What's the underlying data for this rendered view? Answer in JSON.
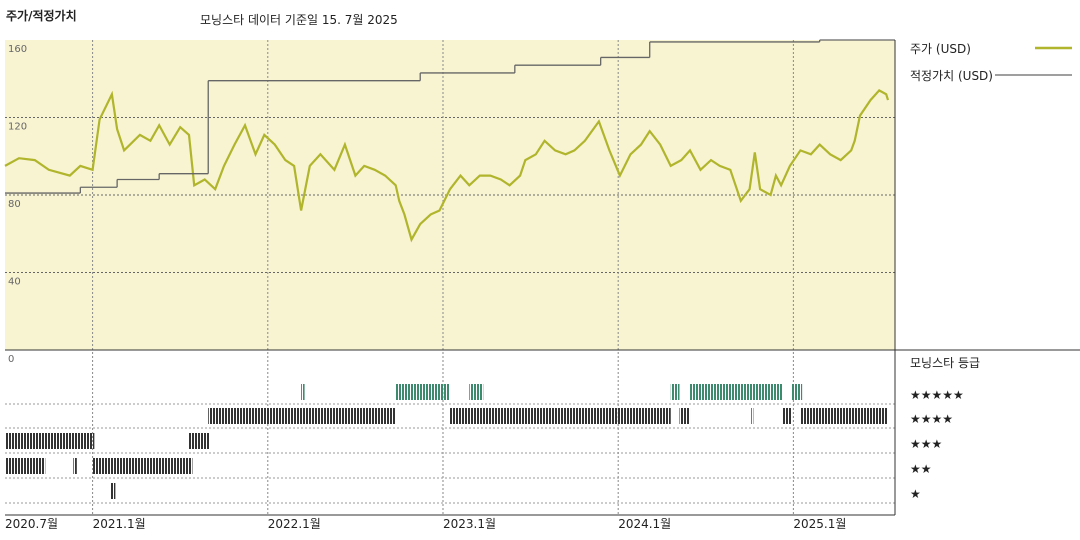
{
  "chart_data": {
    "type": "line",
    "title": "주가/적정가치",
    "subtitle": "모닝스타 데이터 기준일 15. 7월 2025",
    "xlim": [
      2020.5,
      2025.58
    ],
    "xticks": [
      {
        "value": 2020.5,
        "label": "2020.7월"
      },
      {
        "value": 2021.0,
        "label": "2021.1월"
      },
      {
        "value": 2022.0,
        "label": "2022.1월"
      },
      {
        "value": 2023.0,
        "label": "2023.1월"
      },
      {
        "value": 2024.0,
        "label": "2024.1월"
      },
      {
        "value": 2025.0,
        "label": "2025.1월"
      }
    ],
    "ylim": [
      0,
      160
    ],
    "yticks": [
      0,
      40,
      80,
      120,
      160
    ],
    "grid": true,
    "series": [
      {
        "name": "주가 (USD)",
        "color": "#b0b52c",
        "x": [
          2020.5,
          2020.58,
          2020.67,
          2020.75,
          2020.87,
          2020.93,
          2021.0,
          2021.04,
          2021.11,
          2021.14,
          2021.18,
          2021.27,
          2021.33,
          2021.38,
          2021.44,
          2021.5,
          2021.55,
          2021.58,
          2021.64,
          2021.7,
          2021.75,
          2021.81,
          2021.87,
          2021.93,
          2021.98,
          2022.04,
          2022.1,
          2022.15,
          2022.19,
          2022.24,
          2022.3,
          2022.38,
          2022.44,
          2022.5,
          2022.55,
          2022.61,
          2022.67,
          2022.73,
          2022.75,
          2022.78,
          2022.82,
          2022.87,
          2022.93,
          2022.98,
          2023.04,
          2023.1,
          2023.15,
          2023.21,
          2023.27,
          2023.33,
          2023.38,
          2023.44,
          2023.47,
          2023.53,
          2023.58,
          2023.64,
          2023.7,
          2023.75,
          2023.81,
          2023.89,
          2023.95,
          2024.01,
          2024.07,
          2024.13,
          2024.18,
          2024.24,
          2024.3,
          2024.36,
          2024.41,
          2024.47,
          2024.53,
          2024.58,
          2024.64,
          2024.7,
          2024.75,
          2024.78,
          2024.81,
          2024.87,
          2024.9,
          2024.93,
          2024.98,
          2025.04,
          2025.1,
          2025.15,
          2025.21,
          2025.27,
          2025.33,
          2025.35,
          2025.38,
          2025.44,
          2025.49,
          2025.53,
          2025.54
        ],
        "values": [
          95,
          99,
          98,
          93,
          90,
          95,
          93,
          119,
          132,
          114,
          103,
          111,
          108,
          116,
          106,
          115,
          111,
          85,
          88,
          83,
          95,
          106,
          116,
          101,
          111,
          106,
          98,
          95,
          72,
          95,
          101,
          93,
          106,
          90,
          95,
          93,
          90,
          85,
          77,
          70,
          57,
          65,
          70,
          72,
          83,
          90,
          85,
          90,
          90,
          88,
          85,
          90,
          98,
          101,
          108,
          103,
          101,
          103,
          108,
          118,
          103,
          90,
          101,
          106,
          113,
          106,
          95,
          98,
          103,
          93,
          98,
          95,
          93,
          77,
          83,
          102,
          83,
          80,
          90,
          85,
          95,
          103,
          101,
          106,
          101,
          98,
          103,
          108,
          121,
          129,
          134,
          132,
          129
        ]
      },
      {
        "name": "적정가치 (USD)",
        "color": "#666666",
        "x": [
          2020.5,
          2020.93,
          2021.14,
          2021.38,
          2021.66,
          2022.87,
          2023.41,
          2023.9,
          2024.18,
          2025.15,
          2025.58
        ],
        "values": [
          81,
          84,
          88,
          91,
          139,
          143,
          147,
          151,
          159,
          160,
          160
        ]
      }
    ],
    "ratings": {
      "title": "모닝스타 등급",
      "rows": [
        {
          "label": "★★★★★",
          "color": "#3e8a6f",
          "segments": [
            [
              2022.19,
              2022.21
            ],
            [
              2022.73,
              2023.04
            ],
            [
              2023.15,
              2023.23
            ],
            [
              2024.3,
              2024.35
            ],
            [
              2024.41,
              2024.94
            ],
            [
              2024.99,
              2025.05
            ]
          ]
        },
        {
          "label": "★★★★",
          "color": "#333333",
          "segments": [
            [
              2021.66,
              2022.73
            ],
            [
              2023.04,
              2024.3
            ],
            [
              2024.35,
              2024.41
            ],
            [
              2024.76,
              2024.77
            ],
            [
              2024.94,
              2024.99
            ],
            [
              2025.04,
              2025.54
            ]
          ]
        },
        {
          "label": "★★★",
          "color": "#333333",
          "segments": [
            [
              2020.5,
              2021.01
            ],
            [
              2021.55,
              2021.67
            ]
          ]
        },
        {
          "label": "★★",
          "color": "#333333",
          "segments": [
            [
              2020.5,
              2020.73
            ],
            [
              2020.89,
              2020.91
            ],
            [
              2021.0,
              2021.57
            ]
          ]
        },
        {
          "label": "★",
          "color": "#333333",
          "segments": [
            [
              2021.1,
              2021.13
            ]
          ]
        }
      ]
    }
  }
}
